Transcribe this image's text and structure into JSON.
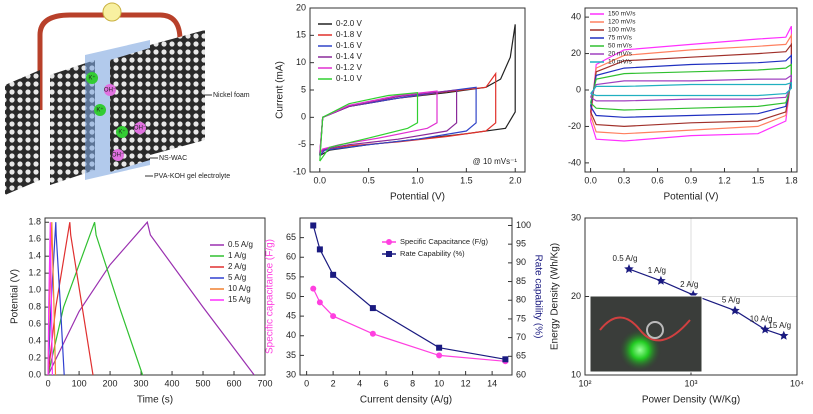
{
  "schematic": {
    "labels": [
      "Nickel foam",
      "NS-WAC",
      "PVA-KOH gel electrolyte"
    ],
    "ions": [
      "K⁺",
      "OH⁻",
      "K⁺",
      "OH⁻",
      "K⁺",
      "OH⁻"
    ]
  },
  "chart_data": [
    {
      "type": "line",
      "xlabel": "Potential (V)",
      "ylabel": "Current (mA)",
      "annotation": "@ 10 mVs⁻¹",
      "xlim": [
        -0.1,
        2.1
      ],
      "xticks": [
        {
          "value": 0,
          "label": "0.0"
        },
        0.5,
        {
          "value": 1,
          "label": "1.0"
        },
        1.5,
        {
          "value": 2,
          "label": "2.0"
        }
      ],
      "ylim": [
        -10,
        20
      ],
      "yticks": [
        -10,
        -5,
        0,
        5,
        10,
        15,
        20
      ],
      "legend": "upper left",
      "series": [
        {
          "name": "0-2.0 V",
          "color": "#222222",
          "x": [
            0,
            0.03,
            0.3,
            0.8,
            1.3,
            1.7,
            1.85,
            1.95,
            2.0,
            2.0,
            1.9,
            1.5,
            1.0,
            0.5,
            0.1,
            0
          ],
          "values": [
            -7,
            0,
            2,
            3.5,
            4.5,
            5.5,
            7,
            11,
            17,
            1,
            -2,
            -3,
            -4,
            -5,
            -6,
            -7
          ]
        },
        {
          "name": "0-1.8 V",
          "color": "#e0302a",
          "x": [
            0,
            0.03,
            0.3,
            0.8,
            1.3,
            1.7,
            1.8,
            1.8,
            1.7,
            1.3,
            0.8,
            0.3,
            0.05,
            0
          ],
          "values": [
            -7,
            0,
            2,
            3.5,
            4.7,
            5.5,
            8,
            -1,
            -2.5,
            -3.5,
            -4.5,
            -5.2,
            -6,
            -7
          ]
        },
        {
          "name": "0-1.6 V",
          "color": "#3044c8",
          "x": [
            0,
            0.03,
            0.3,
            0.8,
            1.3,
            1.6,
            1.6,
            1.5,
            1.0,
            0.5,
            0.05,
            0
          ],
          "values": [
            -7,
            0,
            2,
            3.5,
            4.8,
            5.5,
            -1,
            -2.5,
            -4,
            -5,
            -6,
            -7
          ]
        },
        {
          "name": "0-1.4 V",
          "color": "#8a2a9a",
          "x": [
            0,
            0.03,
            0.3,
            0.8,
            1.3,
            1.4,
            1.4,
            1.3,
            0.8,
            0.3,
            0.05,
            0
          ],
          "values": [
            -6.5,
            0,
            2,
            3.8,
            4.8,
            5,
            -1,
            -2.5,
            -4,
            -5,
            -5.8,
            -6.5
          ]
        },
        {
          "name": "0-1.2 V",
          "color": "#e030d0",
          "x": [
            0,
            0.03,
            0.3,
            0.8,
            1.2,
            1.2,
            1.1,
            0.6,
            0.2,
            0.03,
            0
          ],
          "values": [
            -6.5,
            0,
            2.2,
            4,
            4.8,
            -1,
            -2,
            -3.8,
            -5,
            -5.8,
            -6.5
          ]
        },
        {
          "name": "0-1.0 V",
          "color": "#30d030",
          "x": [
            0,
            0.03,
            0.3,
            0.7,
            1.0,
            1.0,
            0.9,
            0.5,
            0.1,
            0
          ],
          "values": [
            -8,
            0,
            2.5,
            4,
            4.5,
            -1,
            -2,
            -3.8,
            -5.5,
            -8
          ]
        }
      ]
    },
    {
      "type": "line",
      "xlabel": "Potential (V)",
      "xlim": [
        -0.05,
        1.85
      ],
      "xticks": [
        {
          "value": 0,
          "label": "0.0"
        },
        0.3,
        0.6,
        0.9,
        1.2,
        1.5,
        1.8
      ],
      "ylim": [
        -45,
        45
      ],
      "yticks": [
        -40,
        -20,
        0,
        20,
        40
      ],
      "legend": "upper left",
      "x": [
        0,
        0.05,
        0.3,
        0.9,
        1.5,
        1.75,
        1.8,
        1.8,
        1.75,
        1.5,
        0.9,
        0.3,
        0.05,
        0
      ],
      "series": [
        {
          "name": "150 mV/s",
          "color": "#ff30ff",
          "values": [
            -17,
            14,
            22,
            25,
            28,
            29,
            35,
            8,
            -17,
            -24,
            -25,
            -28,
            -27,
            -17
          ]
        },
        {
          "name": "120 mV/s",
          "color": "#ff8060",
          "values": [
            -14,
            12,
            19,
            22,
            24,
            25,
            30,
            7,
            -14,
            -20,
            -22,
            -24,
            -23,
            -14
          ]
        },
        {
          "name": "100 mV/s",
          "color": "#a0302a",
          "values": [
            -12,
            10,
            16,
            18,
            20,
            21,
            25,
            6,
            -12,
            -17,
            -18,
            -20,
            -19,
            -12
          ]
        },
        {
          "name": "75 mV/s",
          "color": "#2030c0",
          "values": [
            -9,
            8,
            12,
            14,
            15,
            16,
            19,
            5,
            -9,
            -13,
            -14,
            -15,
            -14,
            -9
          ]
        },
        {
          "name": "50 mV/s",
          "color": "#30c030",
          "values": [
            -7,
            6,
            9,
            10,
            11,
            12,
            14,
            3,
            -7,
            -9,
            -10,
            -11,
            -10,
            -7
          ]
        },
        {
          "name": "20 mV/s",
          "color": "#a040c0",
          "values": [
            -4,
            3,
            5,
            5,
            6,
            6,
            8,
            2,
            -4,
            -5,
            -5,
            -6,
            -6,
            -4
          ]
        },
        {
          "name": "10 mV/s",
          "color": "#20b0c0",
          "values": [
            -2,
            2,
            2,
            3,
            3,
            3,
            4,
            1,
            -2,
            -3,
            -3,
            -3,
            -3,
            -2
          ]
        }
      ]
    },
    {
      "type": "line",
      "xlabel": "Time (s)",
      "ylabel": "Potential (V)",
      "xlim": [
        -10,
        700
      ],
      "xticks": [
        0,
        100,
        200,
        300,
        400,
        500,
        600,
        700
      ],
      "ylim": [
        0,
        1.85
      ],
      "yticks": [
        {
          "value": 0,
          "label": "0.0"
        },
        0.2,
        0.4,
        0.6,
        0.8,
        {
          "value": 1,
          "label": "1.0"
        },
        1.2,
        1.4,
        1.6,
        1.8
      ],
      "legend": "upper right",
      "series": [
        {
          "name": "0.5 A/g",
          "color": "#9a30b0",
          "x": [
            0,
            100,
            200,
            320,
            330,
            500,
            665
          ],
          "values": [
            0,
            0.75,
            1.3,
            1.8,
            1.65,
            0.8,
            0
          ]
        },
        {
          "name": "1 A/g",
          "color": "#30c030",
          "x": [
            0,
            50,
            150,
            155,
            230,
            305
          ],
          "values": [
            0,
            0.8,
            1.8,
            1.65,
            0.8,
            0
          ]
        },
        {
          "name": "2 A/g",
          "color": "#e03030",
          "x": [
            0,
            25,
            70,
            73,
            110,
            145
          ],
          "values": [
            0,
            0.8,
            1.8,
            1.65,
            0.8,
            0
          ]
        },
        {
          "name": "5 A/g",
          "color": "#3040d0",
          "x": [
            0,
            9,
            25,
            26,
            40,
            52
          ],
          "values": [
            0,
            0.8,
            1.8,
            1.65,
            0.8,
            0
          ]
        },
        {
          "name": "10 A/g",
          "color": "#f08030",
          "x": [
            0,
            4,
            12,
            13,
            19,
            24
          ],
          "values": [
            0,
            0.8,
            1.8,
            1.65,
            0.8,
            0
          ]
        },
        {
          "name": "15 A/g",
          "color": "#ff30ff",
          "x": [
            0,
            2,
            7,
            7.5,
            11,
            14
          ],
          "values": [
            0,
            0.8,
            1.8,
            1.65,
            0.8,
            0
          ]
        }
      ]
    },
    {
      "type": "line",
      "xlabel": "Current density (A/g)",
      "ylabel": "Specific capacitance (F/g)",
      "y2label": "Rate capability (%)",
      "xlim": [
        -0.5,
        15.5
      ],
      "xticks": [
        0,
        2,
        4,
        6,
        8,
        10,
        12,
        14
      ],
      "ylim": [
        30,
        70
      ],
      "yticks": [
        30,
        35,
        40,
        45,
        50,
        55,
        60,
        65
      ],
      "y2lim": [
        60,
        102
      ],
      "y2ticks": [
        60,
        65,
        70,
        75,
        80,
        85,
        90,
        95,
        100
      ],
      "legend": "upper right",
      "x": [
        0.5,
        1,
        2,
        5,
        10,
        15
      ],
      "series": [
        {
          "name": "Specific Capacitance (F/g)",
          "color": "#ff40e0",
          "marker": "circle",
          "values": [
            52,
            48.5,
            45,
            40.5,
            35,
            33.5
          ]
        },
        {
          "name": "Rate Capability (%)",
          "color": "#1a1a80",
          "marker": "square",
          "axis": "y2",
          "values": [
            100,
            93.6,
            86.8,
            77.9,
            67.3,
            64.2
          ]
        }
      ]
    },
    {
      "type": "line",
      "xlabel": "Power Density (W/Kg)",
      "ylabel": "Energy Density (Wh/Kg)",
      "xscale": "log",
      "grid": true,
      "xlim": [
        100,
        10000
      ],
      "xticks": [
        {
          "value": 100,
          "label": "10²"
        },
        {
          "value": 1000,
          "label": "10³"
        },
        {
          "value": 10000,
          "label": "10⁴"
        }
      ],
      "ylim": [
        10,
        30
      ],
      "yticks": [
        10,
        20,
        30
      ],
      "x": [
        260,
        520,
        1050,
        2600,
        5000,
        7500
      ],
      "point_labels": [
        "0.5 A/g",
        "1 A/g",
        "2 A/g",
        "5 A/g",
        "10 A/g",
        "15 A/g"
      ],
      "series": [
        {
          "color": "#1a1a80",
          "marker": "star",
          "values": [
            23.5,
            22,
            20.2,
            18.2,
            15.8,
            15
          ]
        }
      ]
    }
  ]
}
